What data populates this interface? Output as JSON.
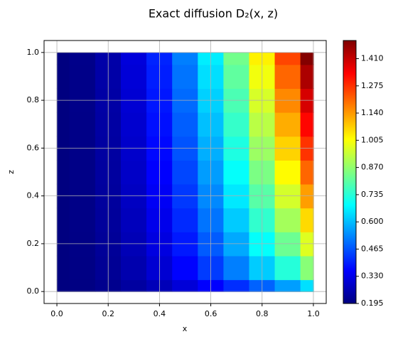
{
  "chart_data": {
    "type": "heatmap",
    "title": "Exact diffusion D₂(x, z)",
    "xlabel": "x",
    "ylabel": "z",
    "x": [
      0,
      0.1,
      0.2,
      0.3,
      0.4,
      0.5,
      0.6,
      0.7,
      0.8,
      0.9,
      1
    ],
    "y": [
      0,
      0.1,
      0.2,
      0.3,
      0.4,
      0.5,
      0.6,
      0.7,
      0.8,
      0.9,
      1
    ],
    "values": [
      [
        0.195,
        0.2,
        0.213,
        0.236,
        0.267,
        0.308,
        0.357,
        0.416,
        0.483,
        0.56,
        0.645
      ],
      [
        0.195,
        0.202,
        0.222,
        0.255,
        0.301,
        0.361,
        0.434,
        0.52,
        0.619,
        0.732,
        0.858
      ],
      [
        0.195,
        0.203,
        0.226,
        0.265,
        0.319,
        0.389,
        0.474,
        0.574,
        0.69,
        0.822,
        0.969
      ],
      [
        0.195,
        0.204,
        0.23,
        0.273,
        0.333,
        0.411,
        0.506,
        0.618,
        0.747,
        0.894,
        1.058
      ],
      [
        0.195,
        0.204,
        0.233,
        0.28,
        0.345,
        0.43,
        0.533,
        0.656,
        0.797,
        0.956,
        1.135
      ],
      [
        0.195,
        0.205,
        0.235,
        0.286,
        0.357,
        0.448,
        0.559,
        0.69,
        0.842,
        1.014,
        1.206
      ],
      [
        0.195,
        0.206,
        0.238,
        0.292,
        0.367,
        0.464,
        0.582,
        0.722,
        0.884,
        1.067,
        1.271
      ],
      [
        0.195,
        0.206,
        0.24,
        0.297,
        0.377,
        0.479,
        0.604,
        0.752,
        0.922,
        1.115,
        1.331
      ],
      [
        0.195,
        0.207,
        0.243,
        0.302,
        0.386,
        0.494,
        0.625,
        0.78,
        0.959,
        1.162,
        1.389
      ],
      [
        0.195,
        0.207,
        0.245,
        0.307,
        0.395,
        0.507,
        0.644,
        0.807,
        0.994,
        1.206,
        1.443
      ],
      [
        0.195,
        0.208,
        0.247,
        0.312,
        0.403,
        0.52,
        0.663,
        0.832,
        1.027,
        1.248,
        1.495
      ]
    ],
    "xlim": [
      -0.05,
      1.05
    ],
    "ylim": [
      -0.05,
      1.05
    ],
    "xticks": [
      {
        "value": 0,
        "label": "0.0"
      },
      0.2,
      0.4,
      0.6,
      0.8,
      {
        "value": 1,
        "label": "1.0"
      }
    ],
    "yticks": [
      {
        "value": 0,
        "label": "0.0"
      },
      0.2,
      0.4,
      0.6,
      0.8,
      {
        "value": 1,
        "label": "1.0"
      }
    ],
    "grid": true,
    "colormap": "jet",
    "clim": [
      0.195,
      1.5
    ],
    "cticks": [
      0.195,
      {
        "value": 0.33,
        "label": "0.330"
      },
      0.465,
      {
        "value": 0.6,
        "label": "0.600"
      },
      0.735,
      {
        "value": 0.87,
        "label": "0.870"
      },
      1.005,
      {
        "value": 1.14,
        "label": "1.140"
      },
      1.275,
      {
        "value": 1.41,
        "label": "1.410"
      }
    ]
  }
}
